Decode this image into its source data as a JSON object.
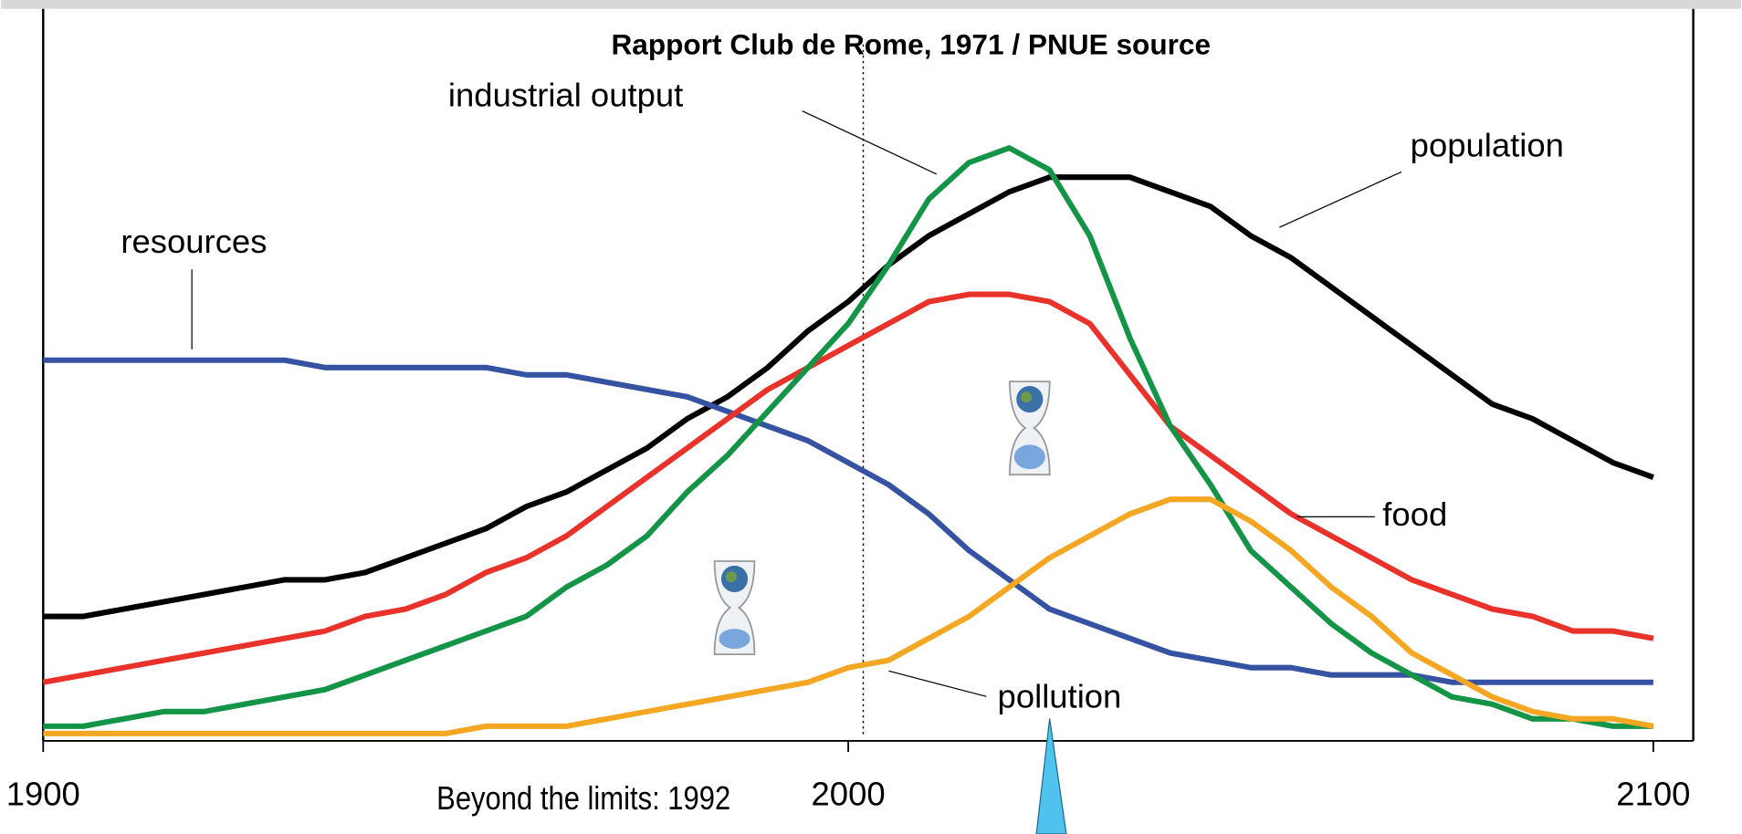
{
  "chart_data": {
    "type": "line",
    "title": "Rapport Club de Rome, 1971 / PNUE source",
    "annotation": "Beyond the limits: 1992",
    "x": [
      1900,
      1905,
      1910,
      1915,
      1920,
      1925,
      1930,
      1935,
      1940,
      1945,
      1950,
      1955,
      1960,
      1965,
      1970,
      1975,
      1980,
      1985,
      1990,
      1995,
      2000,
      2005,
      2010,
      2015,
      2020,
      2025,
      2030,
      2035,
      2040,
      2045,
      2050,
      2055,
      2060,
      2065,
      2070,
      2075,
      2080,
      2085,
      2090,
      2095,
      2100
    ],
    "xlim": [
      1900,
      2100
    ],
    "xticks": [
      1900,
      2000,
      2100
    ],
    "ylim": [
      0,
      100
    ],
    "series": [
      {
        "name": "population",
        "color": "#000000",
        "values": [
          17,
          17,
          18,
          19,
          20,
          21,
          22,
          22,
          23,
          25,
          27,
          29,
          32,
          34,
          37,
          40,
          44,
          47,
          51,
          56,
          60,
          65,
          69,
          72,
          75,
          77,
          77,
          77,
          75,
          73,
          69,
          66,
          62,
          58,
          54,
          50,
          46,
          44,
          41,
          38,
          36
        ]
      },
      {
        "name": "resources",
        "color": "#3653a3",
        "values": [
          52,
          52,
          52,
          52,
          52,
          52,
          52,
          51,
          51,
          51,
          51,
          51,
          50,
          50,
          49,
          48,
          47,
          45,
          43,
          41,
          38,
          35,
          31,
          26,
          22,
          18,
          16,
          14,
          12,
          11,
          10,
          10,
          9,
          9,
          9,
          8,
          8,
          8,
          8,
          8,
          8
        ]
      },
      {
        "name": "food",
        "color": "#e8322a",
        "values": [
          8,
          9,
          10,
          11,
          12,
          13,
          14,
          15,
          17,
          18,
          20,
          23,
          25,
          28,
          32,
          36,
          40,
          44,
          48,
          51,
          54,
          57,
          60,
          61,
          61,
          60,
          57,
          50,
          43,
          39,
          35,
          31,
          28,
          25,
          22,
          20,
          18,
          17,
          15,
          15,
          14
        ]
      },
      {
        "name": "industrial output",
        "color": "#139447",
        "values": [
          2,
          2,
          3,
          4,
          4,
          5,
          6,
          7,
          9,
          11,
          13,
          15,
          17,
          21,
          24,
          28,
          34,
          39,
          45,
          51,
          57,
          65,
          74,
          79,
          81,
          78,
          69,
          55,
          43,
          35,
          26,
          21,
          16,
          12,
          9,
          6,
          5,
          3,
          3,
          2,
          2
        ]
      },
      {
        "name": "pollution",
        "color": "#f5a623",
        "values": [
          1,
          1,
          1,
          1,
          1,
          1,
          1,
          1,
          1,
          1,
          1,
          2,
          2,
          2,
          3,
          4,
          5,
          6,
          7,
          8,
          10,
          11,
          14,
          17,
          21,
          25,
          28,
          31,
          33,
          33,
          30,
          26,
          21,
          17,
          12,
          9,
          6,
          4,
          3,
          3,
          2
        ]
      }
    ]
  }
}
